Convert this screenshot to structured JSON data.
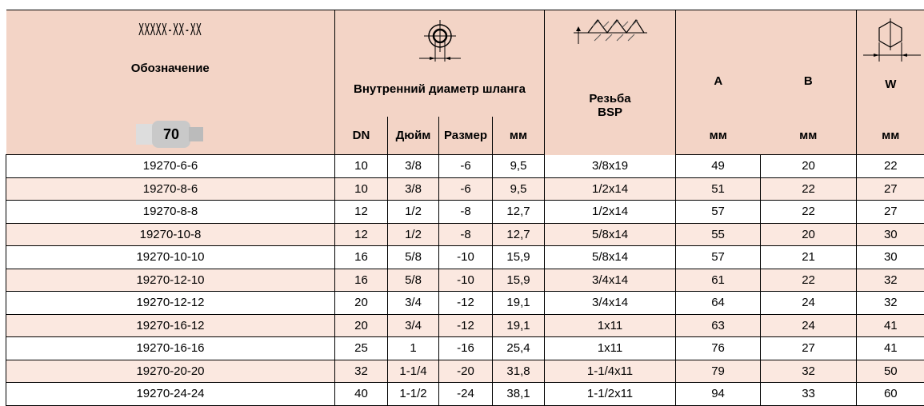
{
  "header": {
    "code": "XXXXX-XX-XX",
    "designation": "Обозначение",
    "badge": "70",
    "inner_diameter": "Внутренний диаметр шланга",
    "thread": "Резьба BSP",
    "a": "A",
    "b": "B",
    "w": "W",
    "sub": [
      "DN",
      "Дюйм",
      "Размер",
      "мм",
      "мм",
      "мм",
      "мм"
    ]
  },
  "table": {
    "rows": [
      [
        "19270-6-6",
        "10",
        "3/8",
        "-6",
        "9,5",
        "3/8x19",
        "49",
        "20",
        "22"
      ],
      [
        "19270-8-6",
        "10",
        "3/8",
        "-6",
        "9,5",
        "1/2x14",
        "51",
        "22",
        "27"
      ],
      [
        "19270-8-8",
        "12",
        "1/2",
        "-8",
        "12,7",
        "1/2x14",
        "57",
        "22",
        "27"
      ],
      [
        "19270-10-8",
        "12",
        "1/2",
        "-8",
        "12,7",
        "5/8x14",
        "55",
        "20",
        "30"
      ],
      [
        "19270-10-10",
        "16",
        "5/8",
        "-10",
        "15,9",
        "5/8x14",
        "57",
        "21",
        "30"
      ],
      [
        "19270-12-10",
        "16",
        "5/8",
        "-10",
        "15,9",
        "3/4x14",
        "61",
        "22",
        "32"
      ],
      [
        "19270-12-12",
        "20",
        "3/4",
        "-12",
        "19,1",
        "3/4x14",
        "64",
        "24",
        "32"
      ],
      [
        "19270-16-12",
        "20",
        "3/4",
        "-12",
        "19,1",
        "1x11",
        "63",
        "24",
        "41"
      ],
      [
        "19270-16-16",
        "25",
        "1",
        "-16",
        "25,4",
        "1x11",
        "76",
        "27",
        "41"
      ],
      [
        "19270-20-20",
        "32",
        "1-1/4",
        "-20",
        "31,8",
        "1-1/4x11",
        "79",
        "32",
        "50"
      ],
      [
        "19270-24-24",
        "40",
        "1-1/2",
        "-24",
        "38,1",
        "1-1/2x11",
        "94",
        "33",
        "60"
      ]
    ]
  }
}
